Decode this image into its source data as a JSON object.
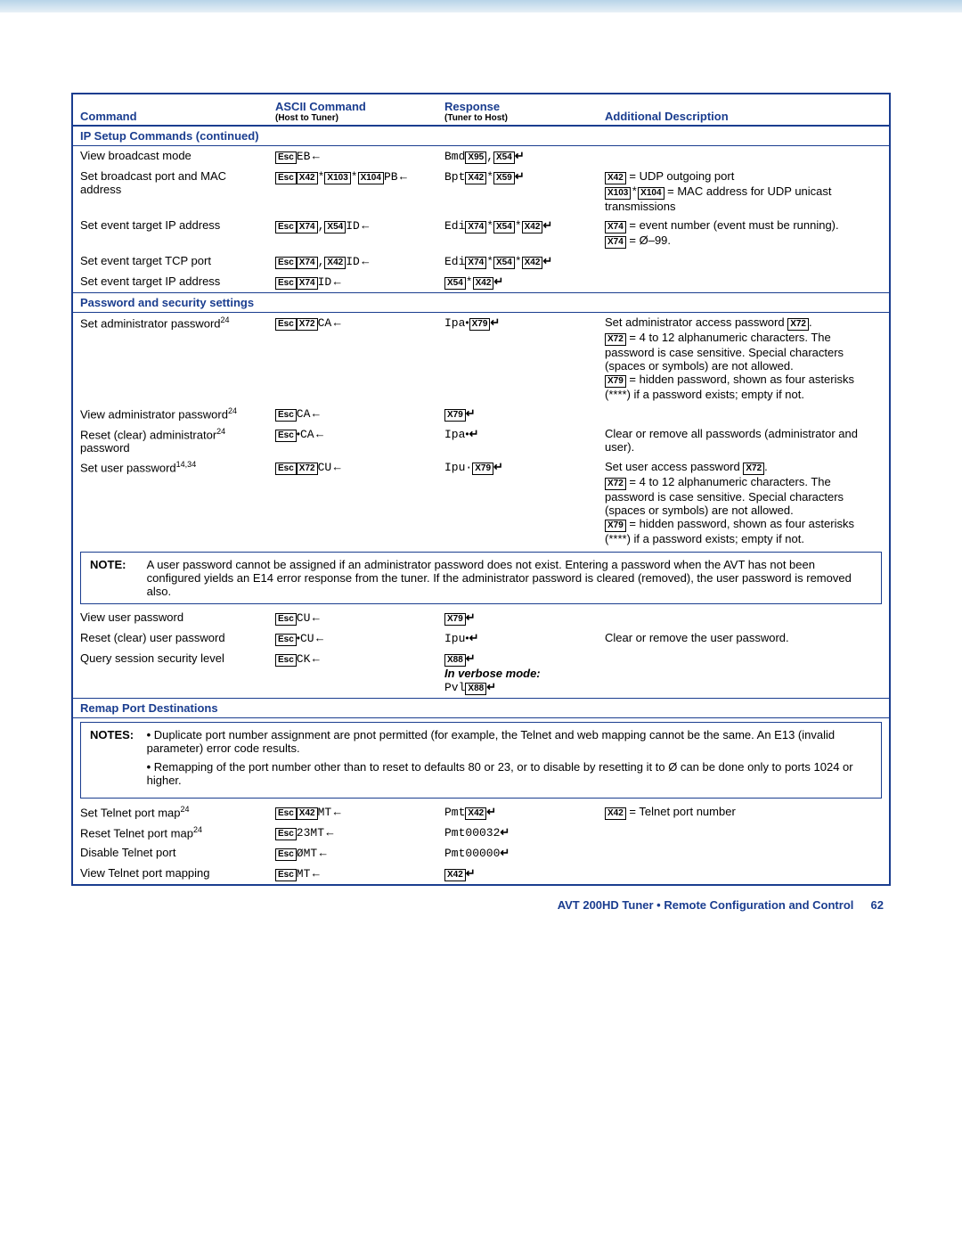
{
  "header": {
    "col1": "Command",
    "col2": "ASCII Command",
    "col2sub": "(Host to Tuner)",
    "col3": "Response",
    "col3sub": "(Tuner to Host)",
    "col4": "Additional Description"
  },
  "sections": {
    "ip": "IP Setup Commands (continued)",
    "pw": "Password and security settings",
    "remap": "Remap Port Destinations"
  },
  "rows": {
    "r1c1": "View broadcast mode",
    "r2c1": "Set broadcast port and MAC address",
    "r2d1": " = UDP outgoing port",
    "r2d2": " = MAC address for UDP unicast transmissions",
    "r3c1": "Set event target IP address",
    "r3d1": " = event number (event must be running).",
    "r3d2": " = Ø–99.",
    "r4c1": "Set event target TCP port",
    "r5c1": "Set event target IP address",
    "p1c1": "Set administrator password",
    "p1d1": "Set administrator access password ",
    "p1d2": " = 4 to 12 alphanumeric characters. The password is case sensitive. Special characters (spaces or symbols) are not allowed.",
    "p1d3": " = hidden password, shown as four asterisks (****) if a password exists; empty if not.",
    "p2c1": "View administrator password",
    "p3c1": "Reset (clear) administrator",
    "p3c1b": "password",
    "p3d1": "Clear or remove all passwords (administrator and user).",
    "p4c1": "Set user password",
    "p4d1": "Set user access password ",
    "p5c1": "View user password",
    "p6c1": "Reset (clear) user password",
    "p6d1": "Clear or remove the user password.",
    "p7c1": "Query session security level",
    "verbose": "In verbose mode:",
    "t1c1": "Set Telnet port map",
    "t1d1": " = Telnet port number",
    "t2c1": "Reset Telnet port map",
    "t3c1": "Disable Telnet port",
    "t4c1": "View Telnet port mapping"
  },
  "notes": {
    "n1label": "NOTE:",
    "n1body": "A user password cannot be assigned if an administrator password does not exist. Entering a password when the AVT has not been configured yields an E14 error response from the tuner. If the administrator password is cleared (removed), the user password is removed also.",
    "n2label": "NOTES:",
    "n2a": "Duplicate port number assignment are pnot permitted (for example, the Telnet and web mapping cannot be the same. An E13 (invalid parameter) error code results.",
    "n2b": "Remapping of the port number other than to reset to defaults 80 or 23, or to disable by resetting it to Ø can be done only to ports 1024 or higher."
  },
  "syms": {
    "esc": "Esc",
    "x42": "X42",
    "x54": "X54",
    "x59": "X59",
    "x72": "X72",
    "x74": "X74",
    "x79": "X79",
    "x88": "X88",
    "x95": "X95",
    "x103": "X103",
    "x104": "X104"
  },
  "footer": {
    "text": "AVT 200HD Tuner • Remote Configuration and Control",
    "page": "62"
  }
}
